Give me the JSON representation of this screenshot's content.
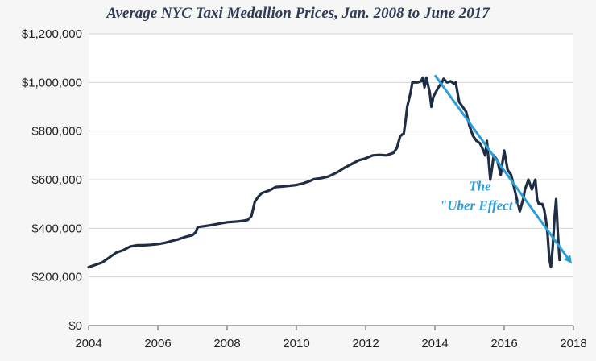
{
  "chart_data": {
    "type": "line",
    "title": "Average NYC Taxi Medallion Prices, Jan. 2008 to June 2017",
    "xlabel": "",
    "ylabel": "",
    "xlim": [
      2004,
      2018
    ],
    "ylim": [
      0,
      1200000
    ],
    "x_ticks": [
      2004,
      2006,
      2008,
      2010,
      2012,
      2014,
      2016,
      2018
    ],
    "x_tick_labels": [
      "2004",
      "2006",
      "2008",
      "2010",
      "2012",
      "2014",
      "2016",
      "2018"
    ],
    "y_ticks": [
      0,
      200000,
      400000,
      600000,
      800000,
      1000000,
      1200000
    ],
    "y_tick_labels": [
      "$0",
      "$200,000",
      "$400,000",
      "$600,000",
      "$800,000",
      "$1,000,000",
      "$1,200,000"
    ],
    "grid": "horizontal",
    "series": [
      {
        "color": "#1f2d45",
        "points": [
          [
            2004.0,
            240000
          ],
          [
            2004.2,
            250000
          ],
          [
            2004.4,
            260000
          ],
          [
            2004.6,
            280000
          ],
          [
            2004.8,
            300000
          ],
          [
            2005.0,
            310000
          ],
          [
            2005.2,
            325000
          ],
          [
            2005.4,
            330000
          ],
          [
            2005.6,
            330000
          ],
          [
            2005.8,
            332000
          ],
          [
            2006.0,
            335000
          ],
          [
            2006.2,
            340000
          ],
          [
            2006.4,
            348000
          ],
          [
            2006.6,
            355000
          ],
          [
            2006.8,
            365000
          ],
          [
            2007.0,
            372000
          ],
          [
            2007.1,
            385000
          ],
          [
            2007.15,
            405000
          ],
          [
            2007.3,
            408000
          ],
          [
            2007.5,
            412000
          ],
          [
            2007.8,
            420000
          ],
          [
            2008.0,
            425000
          ],
          [
            2008.3,
            428000
          ],
          [
            2008.5,
            432000
          ],
          [
            2008.6,
            435000
          ],
          [
            2008.7,
            450000
          ],
          [
            2008.75,
            480000
          ],
          [
            2008.8,
            510000
          ],
          [
            2008.9,
            530000
          ],
          [
            2009.0,
            545000
          ],
          [
            2009.2,
            555000
          ],
          [
            2009.3,
            562000
          ],
          [
            2009.4,
            570000
          ],
          [
            2009.6,
            572000
          ],
          [
            2009.8,
            575000
          ],
          [
            2010.0,
            578000
          ],
          [
            2010.2,
            585000
          ],
          [
            2010.4,
            595000
          ],
          [
            2010.5,
            602000
          ],
          [
            2010.7,
            606000
          ],
          [
            2010.9,
            612000
          ],
          [
            2011.0,
            618000
          ],
          [
            2011.2,
            632000
          ],
          [
            2011.4,
            650000
          ],
          [
            2011.6,
            665000
          ],
          [
            2011.8,
            680000
          ],
          [
            2012.0,
            688000
          ],
          [
            2012.2,
            700000
          ],
          [
            2012.4,
            702000
          ],
          [
            2012.6,
            700000
          ],
          [
            2012.8,
            710000
          ],
          [
            2012.9,
            730000
          ],
          [
            2013.0,
            780000
          ],
          [
            2013.1,
            790000
          ],
          [
            2013.15,
            840000
          ],
          [
            2013.2,
            900000
          ],
          [
            2013.3,
            960000
          ],
          [
            2013.35,
            1000000
          ],
          [
            2013.5,
            1000000
          ],
          [
            2013.6,
            1005000
          ],
          [
            2013.65,
            1020000
          ],
          [
            2013.7,
            980000
          ],
          [
            2013.75,
            1020000
          ],
          [
            2013.85,
            960000
          ],
          [
            2013.9,
            900000
          ],
          [
            2013.95,
            940000
          ],
          [
            2014.1,
            980000
          ],
          [
            2014.2,
            1000000
          ],
          [
            2014.25,
            1015000
          ],
          [
            2014.35,
            1000000
          ],
          [
            2014.45,
            1005000
          ],
          [
            2014.55,
            995000
          ],
          [
            2014.6,
            1000000
          ],
          [
            2014.7,
            920000
          ],
          [
            2014.8,
            900000
          ],
          [
            2014.9,
            880000
          ],
          [
            2015.0,
            820000
          ],
          [
            2015.1,
            780000
          ],
          [
            2015.2,
            760000
          ],
          [
            2015.3,
            750000
          ],
          [
            2015.4,
            720000
          ],
          [
            2015.45,
            700000
          ],
          [
            2015.5,
            760000
          ],
          [
            2015.6,
            600000
          ],
          [
            2015.7,
            700000
          ],
          [
            2015.8,
            680000
          ],
          [
            2015.9,
            620000
          ],
          [
            2016.0,
            720000
          ],
          [
            2016.1,
            640000
          ],
          [
            2016.2,
            620000
          ],
          [
            2016.3,
            560000
          ],
          [
            2016.4,
            500000
          ],
          [
            2016.45,
            470000
          ],
          [
            2016.55,
            520000
          ],
          [
            2016.6,
            560000
          ],
          [
            2016.7,
            600000
          ],
          [
            2016.8,
            560000
          ],
          [
            2016.9,
            600000
          ],
          [
            2016.95,
            520000
          ],
          [
            2017.0,
            500000
          ],
          [
            2017.1,
            500000
          ],
          [
            2017.15,
            480000
          ],
          [
            2017.2,
            440000
          ],
          [
            2017.25,
            380000
          ],
          [
            2017.3,
            280000
          ],
          [
            2017.35,
            240000
          ],
          [
            2017.4,
            320000
          ],
          [
            2017.45,
            440000
          ],
          [
            2017.5,
            520000
          ],
          [
            2017.55,
            380000
          ],
          [
            2017.6,
            270000
          ]
        ]
      }
    ],
    "annotations": [
      {
        "lines": [
          "The",
          "\"Uber Effect\""
        ],
        "color": "#2b9fd8",
        "arrow_from": [
          2014.0,
          1030000
        ],
        "arrow_to": [
          2017.9,
          265000
        ],
        "label_at": [
          2015.3,
          555000
        ]
      }
    ]
  }
}
